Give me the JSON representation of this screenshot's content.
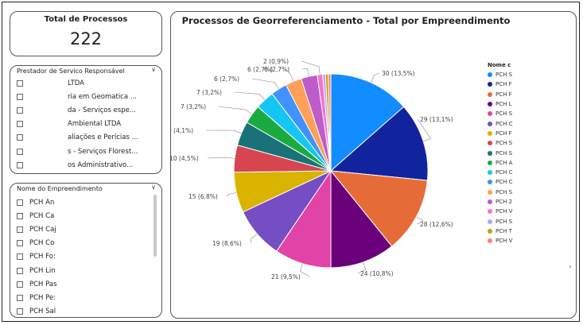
{
  "kpi": {
    "title": "Total de Processos",
    "value": "222"
  },
  "slicer_prestador": {
    "title": "Prestador de Servico Responsável",
    "items": [
      "LTDA",
      "ria em Geomatica ...",
      "da - Serviços espe...",
      "Ambiental LTDA",
      "aliações e Perícias ...",
      "s - Serviços Florest...",
      "os Administrativo..."
    ]
  },
  "slicer_empreendimento": {
    "title": "Nome do Empreendimento",
    "items": [
      "PCH An",
      "PCH Ca",
      "PCH Caj",
      "PCH Co",
      "PCH Fo:",
      "PCH Lin",
      "PCH Pas",
      "PCH Pe:",
      "PCH Sal"
    ]
  },
  "chart_data": {
    "type": "pie",
    "title": "Processos de Georreferenciamento - Total por Empreendimento",
    "legend_title": "Nome c",
    "legend_placement": "right",
    "slices": [
      {
        "label": "30 (13,5%)",
        "value": 30,
        "color": "#118DFF",
        "legend": "PCH S"
      },
      {
        "label": "29 (13,1%)",
        "value": 29,
        "color": "#12239E",
        "legend": "PCH F"
      },
      {
        "label": "28 (12,6%)",
        "value": 28,
        "color": "#E66C37",
        "legend": "PCH F"
      },
      {
        "label": "24 (10,8%)",
        "value": 24,
        "color": "#6B007B",
        "legend": "PCH L"
      },
      {
        "label": "21 (9,5%)",
        "value": 21,
        "color": "#E044A7",
        "legend": "PCH S"
      },
      {
        "label": "19 (8,6%)",
        "value": 19,
        "color": "#744EC2",
        "legend": "PCH C"
      },
      {
        "label": "15 (6,8%)",
        "value": 15,
        "color": "#D9B300",
        "legend": "PCH F"
      },
      {
        "label": "10 (4,5%)",
        "value": 10,
        "color": "#D64550",
        "legend": "PCH S"
      },
      {
        "label": "9 (4,1%)",
        "value": 9,
        "color": "#197278",
        "legend": "PCH S"
      },
      {
        "label": "7 (3,2%)",
        "value": 7,
        "color": "#1AAB40",
        "legend": "PCH A"
      },
      {
        "label": "7 (3,2%)",
        "value": 7,
        "color": "#15C6F4",
        "legend": "PCH C"
      },
      {
        "label": "6 (2,7%)",
        "value": 6,
        "color": "#4092FF",
        "legend": "PCH C"
      },
      {
        "label": "6 (2,7%)",
        "value": 6,
        "color": "#FFA058",
        "legend": "PCH S"
      },
      {
        "label": "6 (2,7%)",
        "value": 6,
        "color": "#BE5DC9",
        "legend": "PCH 2"
      },
      {
        "label": "2 (0,9%)",
        "value": 2,
        "color": "#F472D0",
        "legend": "PCH V"
      },
      {
        "label": "",
        "value": 1,
        "color": "#B5A1FF",
        "legend": "PCH S"
      },
      {
        "label": "",
        "value": 1,
        "color": "#C4A200",
        "legend": "PCH T"
      },
      {
        "label": "",
        "value": 1,
        "color": "#FF8080",
        "legend": "PCH V"
      }
    ]
  }
}
